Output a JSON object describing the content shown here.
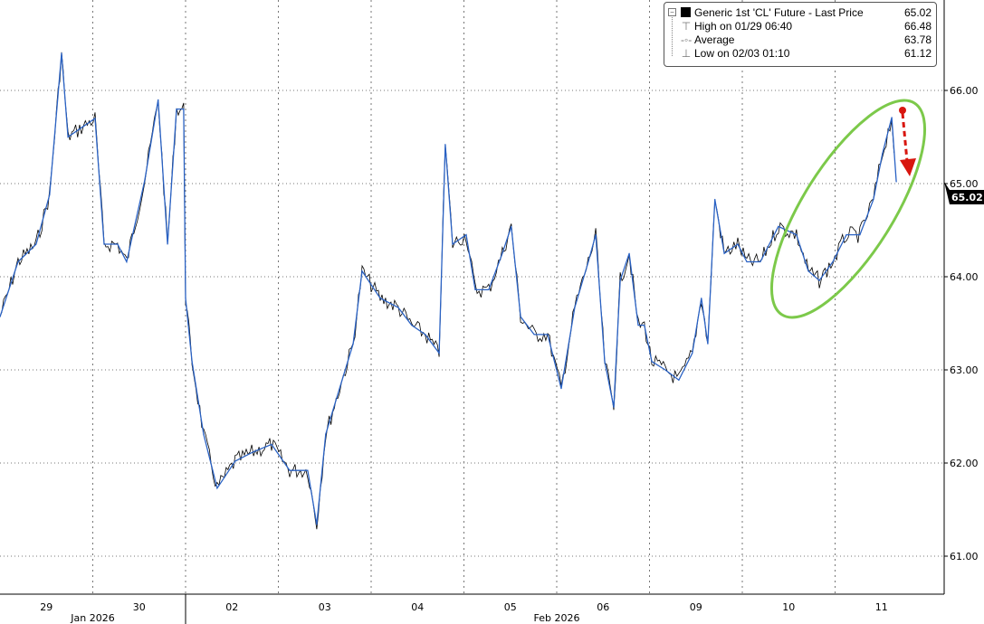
{
  "chart_data": {
    "type": "line",
    "title": "",
    "xlabel": "",
    "ylabel": "",
    "trading_days": [
      "01/29",
      "01/30",
      "02/02",
      "02/03",
      "02/04",
      "02/05",
      "02/06",
      "02/09",
      "02/10",
      "02/11"
    ],
    "x_tick_labels": [
      "29",
      "30",
      "02",
      "03",
      "04",
      "05",
      "06",
      "09",
      "10",
      "11"
    ],
    "month_labels": [
      {
        "label": "Jan 2026",
        "days": [
          "01/29",
          "01/30"
        ]
      },
      {
        "label": "Feb 2026",
        "days": [
          "02/02",
          "02/11"
        ]
      }
    ],
    "ylim": [
      60.8,
      66.9
    ],
    "y_ticks": [
      "61.00",
      "62.00",
      "63.00",
      "64.00",
      "65.00",
      "66.00"
    ],
    "y_axis_side": "right",
    "grid": true,
    "legend_position": "top-right",
    "last_price_label": "65.02",
    "colors": {
      "line": "#2a62c4",
      "line_noise": "#000000",
      "ellipse": "#7cc94a",
      "arrow": "#d8160f",
      "price_tag_bg": "#000000"
    },
    "legend": [
      {
        "icon": "black-square",
        "label": "Generic 1st 'CL' Future - Last Price",
        "value": "65.02"
      },
      {
        "icon": "high-marker",
        "label": "High on 01/29 06:40",
        "value": "66.48"
      },
      {
        "icon": "average-marker",
        "label": "Average",
        "value": "63.78"
      },
      {
        "icon": "low-marker",
        "label": "Low on 02/03 01:10",
        "value": "61.12"
      }
    ],
    "series": [
      {
        "points": [
          [
            "01/29 00:00",
            63.57
          ],
          [
            "01/29 04:40",
            64.16
          ],
          [
            "01/29 09:20",
            64.35
          ],
          [
            "01/29 12:50",
            64.88
          ],
          [
            "01/29 15:55",
            66.4
          ],
          [
            "01/29 17:35",
            65.5
          ],
          [
            "01/29 21:05",
            65.6
          ],
          [
            "01/30 00:35",
            65.7
          ],
          [
            "01/30 02:55",
            64.35
          ],
          [
            "01/30 06:25",
            64.35
          ],
          [
            "01/30 08:45",
            64.16
          ],
          [
            "01/30 13:25",
            65.03
          ],
          [
            "01/30 16:55",
            65.9
          ],
          [
            "01/30 19:20",
            64.35
          ],
          [
            "01/30 21:40",
            65.8
          ],
          [
            "01/30 23:30",
            65.8
          ],
          [
            "02/02 00:00",
            63.77
          ],
          [
            "02/02 01:40",
            63.09
          ],
          [
            "02/02 04:40",
            62.31
          ],
          [
            "02/02 08:10",
            61.73
          ],
          [
            "02/02 12:50",
            62.02
          ],
          [
            "02/02 17:35",
            62.12
          ],
          [
            "02/02 22:15",
            62.2
          ],
          [
            "02/03 02:55",
            61.92
          ],
          [
            "02/03 07:35",
            61.92
          ],
          [
            "02/03 09:55",
            61.34
          ],
          [
            "02/03 12:15",
            62.31
          ],
          [
            "02/03 15:50",
            62.8
          ],
          [
            "02/03 19:20",
            63.28
          ],
          [
            "02/03 21:40",
            64.06
          ],
          [
            "02/04 02:20",
            63.77
          ],
          [
            "02/04 07:00",
            63.67
          ],
          [
            "02/04 10:30",
            63.48
          ],
          [
            "02/04 14:00",
            63.38
          ],
          [
            "02/04 17:35",
            63.18
          ],
          [
            "02/04 19:10",
            65.42
          ],
          [
            "02/04 21:05",
            64.35
          ],
          [
            "02/05 00:35",
            64.45
          ],
          [
            "02/05 02:55",
            63.86
          ],
          [
            "02/05 06:25",
            63.86
          ],
          [
            "02/05 09:55",
            64.25
          ],
          [
            "02/05 12:15",
            64.54
          ],
          [
            "02/05 14:40",
            63.57
          ],
          [
            "02/05 18:10",
            63.38
          ],
          [
            "02/05 21:40",
            63.38
          ],
          [
            "02/06 01:10",
            62.8
          ],
          [
            "02/06 04:40",
            63.67
          ],
          [
            "02/06 08:10",
            64.16
          ],
          [
            "02/06 10:05",
            64.45
          ],
          [
            "02/06 12:25",
            63.09
          ],
          [
            "02/06 14:45",
            62.6
          ],
          [
            "02/06 16:25",
            63.96
          ],
          [
            "02/06 18:45",
            64.25
          ],
          [
            "02/06 21:05",
            63.48
          ],
          [
            "02/06 22:40",
            63.48
          ],
          [
            "02/09 00:35",
            63.09
          ],
          [
            "02/09 04:05",
            63.0
          ],
          [
            "02/09 07:35",
            62.89
          ],
          [
            "02/09 11:05",
            63.18
          ],
          [
            "02/09 13:25",
            63.77
          ],
          [
            "02/09 15:05",
            63.28
          ],
          [
            "02/09 16:55",
            64.83
          ],
          [
            "02/09 19:20",
            64.25
          ],
          [
            "02/09 22:50",
            64.35
          ],
          [
            "02/10 01:10",
            64.16
          ],
          [
            "02/10 04:40",
            64.16
          ],
          [
            "02/10 09:20",
            64.54
          ],
          [
            "02/10 14:00",
            64.45
          ],
          [
            "02/10 17:05",
            64.06
          ],
          [
            "02/10 19:55",
            63.96
          ],
          [
            "02/10 23:25",
            64.16
          ],
          [
            "02/11 02:55",
            64.45
          ],
          [
            "02/11 06:25",
            64.45
          ],
          [
            "02/11 09:55",
            64.83
          ],
          [
            "02/11 12:15",
            65.32
          ],
          [
            "02/11 14:40",
            65.71
          ],
          [
            "02/11 15:50",
            65.02
          ]
        ]
      }
    ]
  }
}
